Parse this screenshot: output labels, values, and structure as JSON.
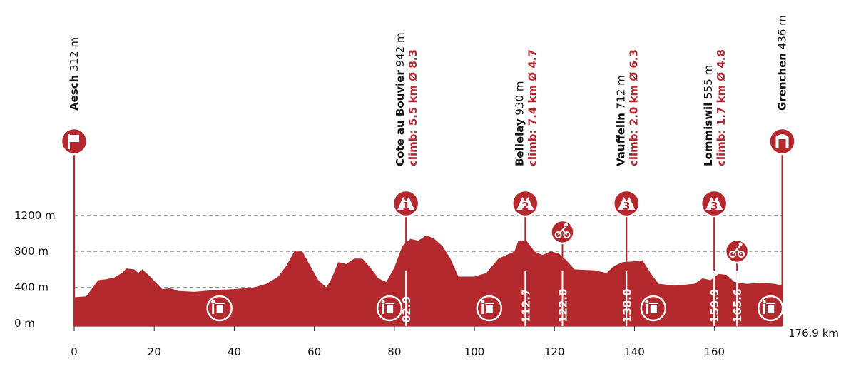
{
  "chart_data": {
    "type": "area",
    "color": "#b3292e",
    "xlim": [
      0,
      176.9
    ],
    "xticks": [
      0,
      20,
      40,
      60,
      80,
      100,
      120,
      140,
      160
    ],
    "ylim": [
      0,
      1500
    ],
    "yticks": [
      {
        "value": 0,
        "label": "0 m"
      },
      {
        "value": 400,
        "label": "400 m"
      },
      {
        "value": 800,
        "label": "800 m"
      },
      {
        "value": 1200,
        "label": "1200 m"
      }
    ],
    "grid": true,
    "distance_label": "176.9 km",
    "profile": {
      "km": [
        0,
        3,
        5,
        6,
        8,
        10,
        12,
        13,
        15,
        16,
        17,
        19,
        22,
        24,
        26,
        30,
        35,
        40,
        45,
        48,
        51,
        53,
        55,
        57,
        59,
        61,
        63,
        64,
        66,
        68,
        70,
        72,
        74,
        76,
        78,
        80,
        82,
        84,
        86,
        88,
        90,
        92,
        94,
        96,
        100,
        103,
        106,
        108,
        110,
        111,
        113,
        115,
        117,
        119,
        121,
        123,
        125,
        130,
        133,
        135,
        137,
        140,
        142,
        144,
        146,
        150,
        155,
        157,
        159,
        161,
        163,
        165,
        168,
        172,
        175,
        176.9
      ],
      "elevation": [
        290,
        300,
        420,
        480,
        490,
        510,
        560,
        610,
        600,
        560,
        600,
        520,
        380,
        390,
        360,
        350,
        370,
        380,
        400,
        440,
        520,
        640,
        800,
        800,
        640,
        480,
        400,
        470,
        680,
        660,
        720,
        720,
        620,
        500,
        460,
        620,
        860,
        940,
        920,
        980,
        940,
        860,
        720,
        520,
        520,
        560,
        720,
        760,
        800,
        920,
        920,
        800,
        760,
        800,
        780,
        700,
        600,
        590,
        560,
        640,
        680,
        690,
        700,
        560,
        440,
        420,
        440,
        500,
        480,
        550,
        540,
        460,
        440,
        450,
        440,
        420
      ]
    },
    "start": {
      "km": 0,
      "name": "Aesch",
      "elevation": {
        "value": 312,
        "label": "312 m"
      }
    },
    "finish": {
      "km": 176.9,
      "name": "Grenchen",
      "elevation": {
        "value": 436,
        "label": "436 m"
      }
    },
    "climbs": [
      {
        "km": {
          "value": 82.9,
          "label": "82.9"
        },
        "name": "Cote au Bouvier",
        "elevation": {
          "value": 942,
          "label": "942 m"
        },
        "detail": "climb: 5.5 km Ø 8.3",
        "category": "1"
      },
      {
        "km": {
          "value": 112.7,
          "label": "112.7"
        },
        "name": "Bellelay",
        "elevation": {
          "value": 930,
          "label": "930 m"
        },
        "detail": "climb: 7.4 km Ø 4.7",
        "category": "2"
      },
      {
        "km": {
          "value": 138,
          "label": "138.0"
        },
        "name": "Vauffelin",
        "elevation": {
          "value": 712,
          "label": "712 m"
        },
        "detail": "climb: 2.0 km Ø 6.3",
        "category": "3"
      },
      {
        "km": {
          "value": 159.9,
          "label": "159.9"
        },
        "name": "Lommiswil",
        "elevation": {
          "value": 555,
          "label": "555 m"
        },
        "detail": "climb: 1.7 km Ø 4.8",
        "category": "3"
      }
    ],
    "sprints": [
      {
        "value": 122,
        "label": "122.0"
      },
      {
        "value": 165.6,
        "label": "165.6"
      }
    ],
    "waste_zones": [
      36.3,
      78.8,
      103.7,
      144.7,
      174
    ]
  }
}
